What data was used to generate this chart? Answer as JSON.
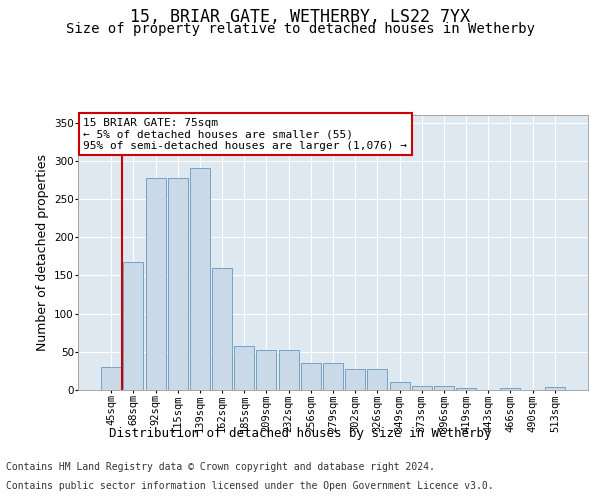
{
  "title": "15, BRIAR GATE, WETHERBY, LS22 7YX",
  "subtitle": "Size of property relative to detached houses in Wetherby",
  "xlabel": "Distribution of detached houses by size in Wetherby",
  "ylabel": "Number of detached properties",
  "categories": [
    "45sqm",
    "68sqm",
    "92sqm",
    "115sqm",
    "139sqm",
    "162sqm",
    "185sqm",
    "209sqm",
    "232sqm",
    "256sqm",
    "279sqm",
    "302sqm",
    "326sqm",
    "349sqm",
    "373sqm",
    "396sqm",
    "419sqm",
    "443sqm",
    "466sqm",
    "490sqm",
    "513sqm"
  ],
  "values": [
    30,
    167,
    278,
    278,
    290,
    160,
    58,
    53,
    53,
    35,
    35,
    27,
    27,
    11,
    5,
    5,
    2,
    0,
    2,
    0,
    4
  ],
  "bar_color": "#c9d9e8",
  "bar_edge_color": "#6699bb",
  "vline_color": "#cc0000",
  "vline_x_index": 1,
  "annotation_text": "15 BRIAR GATE: 75sqm\n← 5% of detached houses are smaller (55)\n95% of semi-detached houses are larger (1,076) →",
  "annotation_box_color": "#ffffff",
  "annotation_box_edge": "#cc0000",
  "ylim": [
    0,
    360
  ],
  "yticks": [
    0,
    50,
    100,
    150,
    200,
    250,
    300,
    350
  ],
  "background_color": "#ffffff",
  "plot_bg_color": "#dde8f0",
  "grid_color": "#ffffff",
  "footer_line1": "Contains HM Land Registry data © Crown copyright and database right 2024.",
  "footer_line2": "Contains public sector information licensed under the Open Government Licence v3.0.",
  "title_fontsize": 12,
  "subtitle_fontsize": 10,
  "ylabel_fontsize": 9,
  "xlabel_fontsize": 9,
  "tick_fontsize": 7.5,
  "annotation_fontsize": 8,
  "footer_fontsize": 7
}
